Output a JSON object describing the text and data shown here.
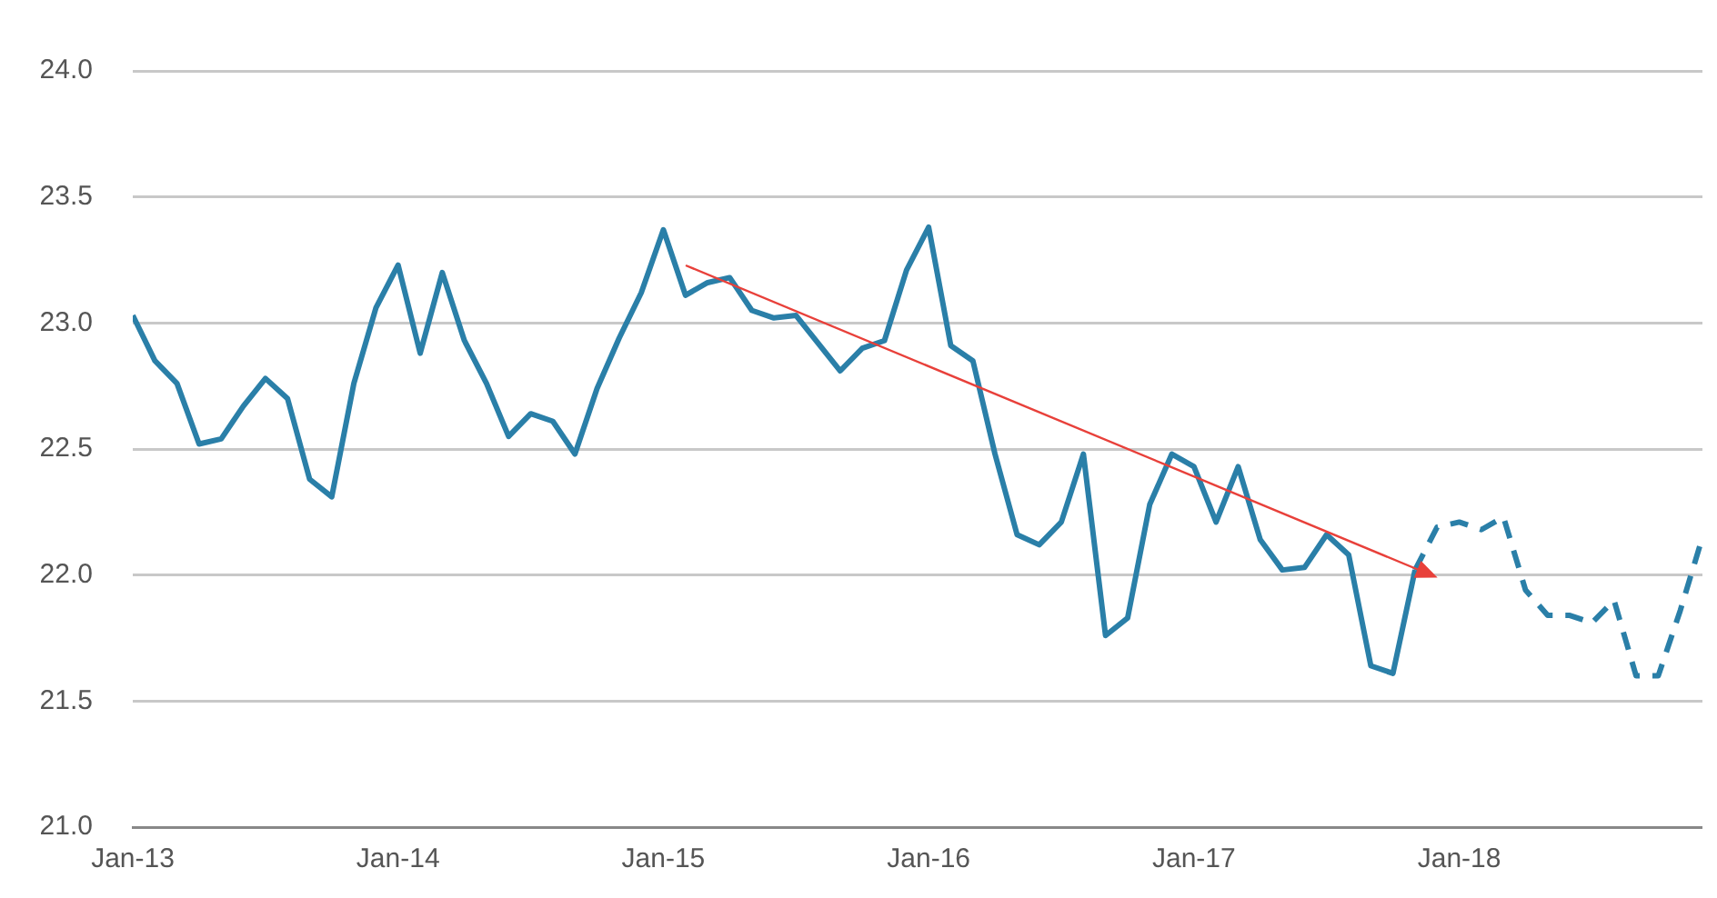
{
  "chart_data": {
    "type": "line",
    "x": [
      "2013-01",
      "2013-02",
      "2013-03",
      "2013-04",
      "2013-05",
      "2013-06",
      "2013-07",
      "2013-08",
      "2013-09",
      "2013-10",
      "2013-11",
      "2013-12",
      "2014-01",
      "2014-02",
      "2014-03",
      "2014-04",
      "2014-05",
      "2014-06",
      "2014-07",
      "2014-08",
      "2014-09",
      "2014-10",
      "2014-11",
      "2014-12",
      "2015-01",
      "2015-02",
      "2015-03",
      "2015-04",
      "2015-05",
      "2015-06",
      "2015-07",
      "2015-08",
      "2015-09",
      "2015-10",
      "2015-11",
      "2015-12",
      "2016-01",
      "2016-02",
      "2016-03",
      "2016-04",
      "2016-05",
      "2016-06",
      "2016-07",
      "2016-08",
      "2016-09",
      "2016-10",
      "2016-11",
      "2016-12",
      "2017-01",
      "2017-02",
      "2017-03",
      "2017-04",
      "2017-05",
      "2017-06",
      "2017-07",
      "2017-08",
      "2017-09",
      "2017-10",
      "2017-11",
      "2017-12",
      "2018-01",
      "2018-02",
      "2018-03",
      "2018-04",
      "2018-05",
      "2018-06",
      "2018-07",
      "2018-08",
      "2018-09",
      "2018-10",
      "2018-11",
      "2018-12"
    ],
    "series": [
      {
        "color": "#2a7fa8",
        "line_style": "solid",
        "values": [
          23.03,
          22.85,
          22.76,
          22.52,
          22.54,
          22.67,
          22.78,
          22.7,
          22.38,
          22.31,
          22.76,
          23.06,
          23.23,
          22.88,
          23.2,
          22.93,
          22.76,
          22.55,
          22.64,
          22.61,
          22.48,
          22.74,
          22.94,
          23.12,
          23.37,
          23.11,
          23.16,
          23.18,
          23.05,
          23.02,
          23.03,
          22.92,
          22.81,
          22.9,
          22.93,
          23.21,
          23.38,
          22.91,
          22.85,
          22.48,
          22.16,
          22.12,
          22.21,
          22.48,
          21.76,
          21.83,
          22.28,
          22.48,
          22.43,
          22.21,
          22.43,
          22.14,
          22.02,
          22.03,
          22.16,
          22.08,
          21.64,
          21.61,
          22.02,
          null,
          null,
          null,
          null,
          null,
          null,
          null,
          null,
          null,
          null,
          null,
          null,
          null
        ]
      },
      {
        "color": "#2a7fa8",
        "line_style": "dashed",
        "values": [
          null,
          null,
          null,
          null,
          null,
          null,
          null,
          null,
          null,
          null,
          null,
          null,
          null,
          null,
          null,
          null,
          null,
          null,
          null,
          null,
          null,
          null,
          null,
          null,
          null,
          null,
          null,
          null,
          null,
          null,
          null,
          null,
          null,
          null,
          null,
          null,
          null,
          null,
          null,
          null,
          null,
          null,
          null,
          null,
          null,
          null,
          null,
          null,
          null,
          null,
          null,
          null,
          null,
          null,
          null,
          null,
          null,
          null,
          22.02,
          22.19,
          22.21,
          22.18,
          22.23,
          21.94,
          21.84,
          21.84,
          21.81,
          21.9,
          21.6,
          21.6,
          21.86,
          22.15
        ]
      }
    ],
    "xlim": [
      "2013-01",
      "2018-12"
    ],
    "xticks": [
      {
        "value": "2013-01",
        "label": "Jan-13"
      },
      {
        "value": "2014-01",
        "label": "Jan-14"
      },
      {
        "value": "2015-01",
        "label": "Jan-15"
      },
      {
        "value": "2016-01",
        "label": "Jan-16"
      },
      {
        "value": "2017-01",
        "label": "Jan-17"
      },
      {
        "value": "2018-01",
        "label": "Jan-18"
      }
    ],
    "ylim": [
      21,
      24
    ],
    "yticks": [
      {
        "value": 21,
        "label": "21.0"
      },
      {
        "value": 21.5,
        "label": "21.5"
      },
      {
        "value": 22,
        "label": "22.0"
      },
      {
        "value": 22.5,
        "label": "22.5"
      },
      {
        "value": 23,
        "label": "23.0"
      },
      {
        "value": 23.5,
        "label": "23.5"
      },
      {
        "value": 24,
        "label": "24.0"
      }
    ],
    "grid": "y",
    "legend": false,
    "marker": "none"
  }
}
